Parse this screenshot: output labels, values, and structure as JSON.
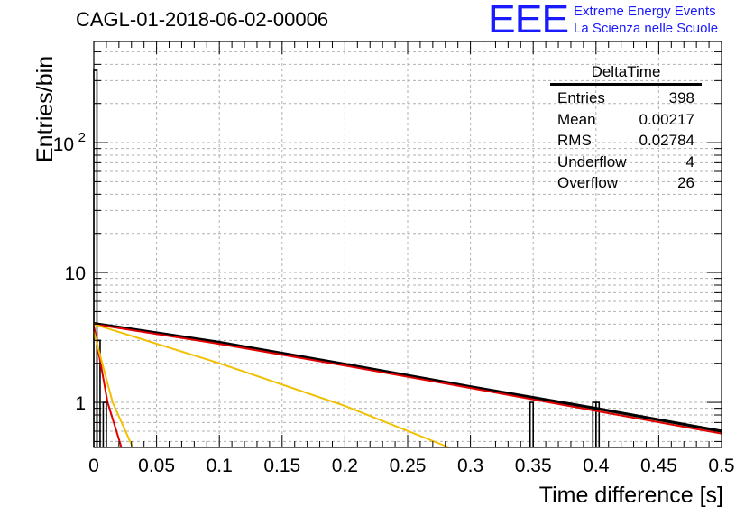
{
  "header": {
    "run_title": "CAGL-01-2018-06-02-00006",
    "logo_mark": "EEE",
    "logo_line1": "Extreme Energy Events",
    "logo_line2": "La Scienza nelle Scuole"
  },
  "stats_box": {
    "title": "DeltaTime",
    "rows": [
      {
        "label": "Entries",
        "value": "398"
      },
      {
        "label": "Mean",
        "value": "0.00217"
      },
      {
        "label": "RMS",
        "value": "0.02784"
      },
      {
        "label": "Underflow",
        "value": "4"
      },
      {
        "label": "Overflow",
        "value": "26"
      }
    ]
  },
  "colors": {
    "histogram": "#000000",
    "fit_red": "#e00000",
    "fit_yellow": "#f2c000",
    "logo_blue": "#1a1aff",
    "grid": "#b0b0b0"
  },
  "chart_data": {
    "type": "histogram",
    "xlabel": "Time difference [s]",
    "ylabel": "Entries/bin",
    "xlim": [
      0,
      0.5
    ],
    "ylim": [
      0.45,
      600
    ],
    "y_scale": "log",
    "grid": true,
    "x_ticks": [
      {
        "v": 0,
        "label": "0"
      },
      {
        "v": 0.05,
        "label": "0.05"
      },
      {
        "v": 0.1,
        "label": "0.1"
      },
      {
        "v": 0.15,
        "label": "0.15"
      },
      {
        "v": 0.2,
        "label": "0.2"
      },
      {
        "v": 0.25,
        "label": "0.25"
      },
      {
        "v": 0.3,
        "label": "0.3"
      },
      {
        "v": 0.35,
        "label": "0.35"
      },
      {
        "v": 0.4,
        "label": "0.4"
      },
      {
        "v": 0.45,
        "label": "0.45"
      },
      {
        "v": 0.5,
        "label": "0.5"
      }
    ],
    "y_ticks": [
      {
        "v": 1,
        "base": "1",
        "exp": ""
      },
      {
        "v": 10,
        "base": "10",
        "exp": ""
      },
      {
        "v": 100,
        "base": "10",
        "exp": "2"
      }
    ],
    "bin_width": 0.0025,
    "histogram_bins": [
      {
        "x": 0.0,
        "y": 360
      },
      {
        "x": 0.0025,
        "y": 3
      },
      {
        "x": 0.0075,
        "y": 1
      },
      {
        "x": 0.3475,
        "y": 1
      },
      {
        "x": 0.3975,
        "y": 1
      },
      {
        "x": 0.4,
        "y": 1
      }
    ],
    "series": [
      {
        "color": "black",
        "points": [
          [
            0,
            4.05
          ],
          [
            0.1,
            2.9
          ],
          [
            0.2,
            1.97
          ],
          [
            0.3,
            1.32
          ],
          [
            0.4,
            0.9
          ],
          [
            0.5,
            0.6
          ]
        ]
      },
      {
        "color": "red",
        "points": [
          [
            0,
            4.0
          ],
          [
            0.1,
            2.82
          ],
          [
            0.2,
            1.92
          ],
          [
            0.3,
            1.29
          ],
          [
            0.4,
            0.86
          ],
          [
            0.5,
            0.575
          ]
        ]
      },
      {
        "color": "red",
        "points": [
          [
            0,
            3.9
          ],
          [
            0.011,
            1.0
          ],
          [
            0.022,
            0.45
          ]
        ]
      },
      {
        "color": "yellow",
        "points": [
          [
            0,
            4.0
          ],
          [
            0.1,
            2.0
          ],
          [
            0.2,
            0.94
          ],
          [
            0.283,
            0.45
          ]
        ]
      },
      {
        "color": "yellow",
        "points": [
          [
            0,
            3.5
          ],
          [
            0.015,
            1.0
          ],
          [
            0.031,
            0.45
          ]
        ]
      }
    ]
  }
}
